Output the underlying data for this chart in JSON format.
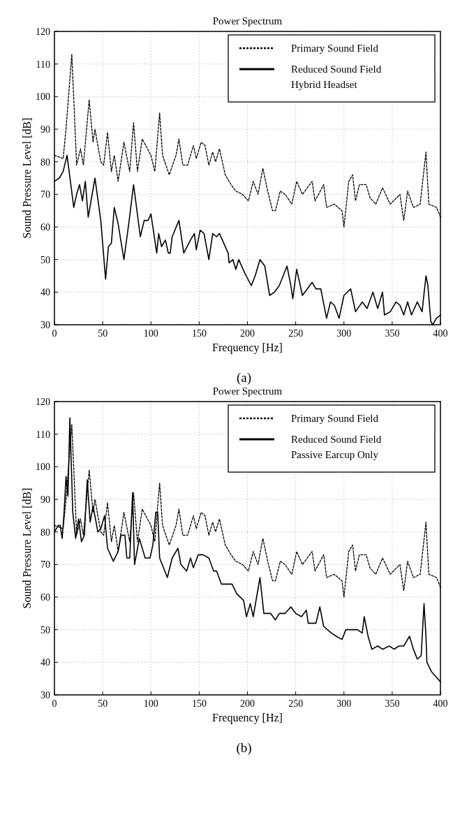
{
  "chart_data": [
    {
      "type": "line",
      "title": "Power Spectrum",
      "xlabel": "Frequency [Hz]",
      "ylabel": "Sound Pressure Level [dB]",
      "annotations": [
        "(a)"
      ],
      "xlim": [
        0,
        400
      ],
      "xticks": [
        0,
        50,
        100,
        150,
        200,
        250,
        300,
        350,
        400
      ],
      "ylim": [
        30,
        120
      ],
      "yticks": [
        30,
        40,
        50,
        60,
        70,
        80,
        90,
        100,
        110,
        120
      ],
      "grid": true,
      "legend": "top right",
      "series": [
        {
          "name": "Primary Sound Field",
          "color": "#000000",
          "line_style": "dashed",
          "x": [
            0,
            9,
            12,
            18,
            23,
            27,
            30,
            36,
            40,
            42,
            48,
            51,
            55,
            59,
            62,
            66,
            72,
            78,
            82,
            86,
            91,
            100,
            104,
            109,
            112,
            119,
            126,
            129,
            133,
            138,
            144,
            147,
            152,
            156,
            160,
            164,
            167,
            171,
            177,
            183,
            188,
            195,
            201,
            206,
            211,
            216,
            221,
            226,
            229,
            234,
            239,
            246,
            251,
            257,
            267,
            270,
            279,
            282,
            290,
            298,
            300,
            305,
            309,
            312,
            316,
            323,
            327,
            333,
            340,
            348,
            358,
            362,
            366,
            372,
            379,
            385,
            388,
            396,
            400
          ],
          "values": [
            82,
            81,
            90,
            113,
            79,
            84,
            79,
            99,
            86,
            90,
            80,
            79,
            89,
            77,
            82,
            74,
            86,
            77,
            92,
            77,
            87,
            82,
            77,
            95,
            82,
            76,
            82,
            87,
            79,
            79,
            85,
            81,
            86,
            85,
            79,
            83,
            80,
            84,
            76,
            73,
            71,
            70,
            68,
            74,
            70,
            78,
            71,
            65,
            65,
            71,
            70,
            67,
            74,
            70,
            74,
            68,
            73,
            66,
            67,
            65,
            60,
            74,
            76,
            68,
            73,
            73,
            69,
            67,
            72,
            67,
            70,
            62,
            71,
            66,
            67,
            83,
            67,
            66,
            63
          ]
        },
        {
          "name": "Reduced Sound Field\nHybrid Headset",
          "color": "#000000",
          "line_style": "solid",
          "x": [
            0,
            5,
            9,
            13,
            17,
            20,
            23,
            26,
            29,
            32,
            35,
            42,
            48,
            53,
            56,
            59,
            62,
            66,
            72,
            77,
            82,
            89,
            93,
            97,
            100,
            106,
            108,
            111,
            115,
            118,
            120,
            122,
            129,
            134,
            141,
            145,
            147,
            151,
            155,
            160,
            164,
            168,
            171,
            180,
            181,
            185,
            188,
            191,
            197,
            204,
            208,
            213,
            218,
            223,
            228,
            233,
            241,
            245,
            247,
            251,
            257,
            262,
            267,
            271,
            276,
            282,
            286,
            290,
            295,
            300,
            307,
            312,
            319,
            324,
            330,
            335,
            340,
            342,
            348,
            354,
            358,
            362,
            366,
            370,
            376,
            381,
            385,
            387,
            390,
            392,
            396,
            400
          ],
          "values": [
            74,
            75,
            77,
            82,
            73,
            66,
            70,
            73,
            68,
            74,
            63,
            75,
            62,
            44,
            54,
            55,
            66,
            61,
            50,
            61,
            73,
            57,
            62,
            62,
            64,
            52,
            58,
            54,
            56,
            52,
            52,
            57,
            62,
            52,
            56,
            58,
            53,
            59,
            58,
            50,
            58,
            57,
            58,
            52,
            49,
            50,
            47,
            50,
            46,
            42,
            45,
            50,
            48,
            39,
            40,
            42,
            48,
            42,
            38,
            47,
            39,
            41,
            43,
            41,
            41,
            32,
            37,
            36,
            32,
            39,
            41,
            34,
            37,
            35,
            40,
            35,
            40,
            33,
            34,
            37,
            36,
            33,
            37,
            33,
            37,
            34,
            45,
            42,
            31,
            30,
            32,
            33
          ]
        }
      ]
    },
    {
      "type": "line",
      "title": "Power Spectrum",
      "xlabel": "Frequency [Hz]",
      "ylabel": "Sound Pressure Level [dB]",
      "annotations": [
        "(b)"
      ],
      "xlim": [
        0,
        400
      ],
      "xticks": [
        0,
        50,
        100,
        150,
        200,
        250,
        300,
        350,
        400
      ],
      "ylim": [
        30,
        120
      ],
      "yticks": [
        30,
        40,
        50,
        60,
        70,
        80,
        90,
        100,
        110,
        120
      ],
      "grid": true,
      "legend": "top right",
      "series": [
        {
          "name": "Primary Sound Field",
          "color": "#000000",
          "line_style": "dashed",
          "x": [
            0,
            9,
            12,
            18,
            23,
            27,
            30,
            36,
            40,
            42,
            48,
            51,
            55,
            59,
            62,
            66,
            72,
            78,
            82,
            86,
            91,
            100,
            104,
            109,
            112,
            119,
            126,
            129,
            133,
            138,
            144,
            147,
            152,
            156,
            160,
            164,
            167,
            171,
            177,
            183,
            188,
            195,
            201,
            206,
            211,
            216,
            221,
            226,
            229,
            234,
            239,
            246,
            251,
            257,
            267,
            270,
            279,
            282,
            290,
            298,
            300,
            305,
            309,
            312,
            316,
            323,
            327,
            333,
            340,
            348,
            358,
            362,
            366,
            372,
            379,
            385,
            388,
            396,
            400
          ],
          "values": [
            82,
            81,
            90,
            113,
            79,
            84,
            79,
            99,
            86,
            90,
            80,
            79,
            89,
            77,
            82,
            74,
            86,
            77,
            92,
            77,
            87,
            82,
            77,
            95,
            82,
            76,
            82,
            87,
            79,
            79,
            85,
            81,
            86,
            85,
            79,
            83,
            80,
            84,
            76,
            73,
            71,
            70,
            68,
            74,
            70,
            78,
            71,
            65,
            65,
            71,
            70,
            67,
            74,
            70,
            74,
            68,
            73,
            66,
            67,
            65,
            60,
            74,
            76,
            68,
            73,
            73,
            69,
            67,
            72,
            67,
            70,
            62,
            71,
            66,
            67,
            83,
            67,
            66,
            63
          ]
        },
        {
          "name": "Reduced Sound Field\nPassive Earcup Only",
          "color": "#000000",
          "line_style": "solid",
          "x": [
            0,
            4,
            6,
            8,
            10,
            12,
            14,
            16,
            19,
            22,
            25,
            28,
            31,
            34,
            37,
            40,
            45,
            48,
            52,
            55,
            61,
            66,
            69,
            73,
            75,
            78,
            81,
            83,
            88,
            94,
            99,
            102,
            105,
            107,
            109,
            117,
            122,
            128,
            131,
            137,
            141,
            144,
            149,
            154,
            160,
            165,
            168,
            173,
            179,
            184,
            189,
            196,
            199,
            203,
            206,
            213,
            217,
            224,
            229,
            233,
            239,
            245,
            250,
            256,
            261,
            263,
            271,
            275,
            279,
            287,
            292,
            298,
            302,
            307,
            314,
            319,
            321,
            325,
            329,
            335,
            340,
            347,
            352,
            357,
            362,
            368,
            372,
            376,
            380,
            383,
            385,
            386,
            391,
            400
          ],
          "values": [
            80,
            82,
            82,
            78,
            86,
            97,
            91,
            115,
            86,
            78,
            84,
            77,
            79,
            96,
            83,
            88,
            80,
            81,
            85,
            75,
            71,
            74,
            79,
            79,
            72,
            72,
            92,
            70,
            78,
            72,
            72,
            76,
            86,
            86,
            72,
            66,
            72,
            75,
            70,
            68,
            72,
            69,
            73,
            73,
            72,
            68,
            68,
            64,
            64,
            64,
            61,
            59,
            54,
            58,
            54,
            66,
            55,
            55,
            53,
            55,
            55,
            57,
            55,
            54,
            56,
            52,
            52,
            57,
            51,
            49,
            48,
            47,
            50,
            50,
            50,
            49,
            54,
            48,
            44,
            45,
            44,
            45,
            44,
            45,
            45,
            48,
            44,
            41,
            42,
            58,
            48,
            40,
            37,
            34
          ]
        }
      ]
    }
  ]
}
